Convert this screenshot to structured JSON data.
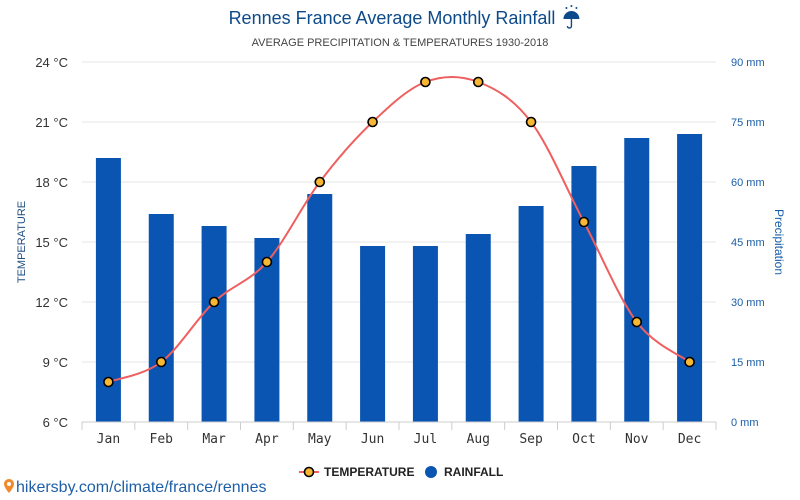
{
  "header": {
    "title": "Rennes France Average Monthly Rainfall",
    "title_icon": "umbrella-rain-icon",
    "subtitle": "AVERAGE PRECIPITATION & TEMPERATURES 1930-2018"
  },
  "source": {
    "text": "hikersby.com/climate/france/rennes",
    "icon": "map-pin-icon"
  },
  "colors": {
    "bar": "#0a55b2",
    "line": "#ef5f5f",
    "marker_fill": "#f7b733",
    "marker_stroke": "#000000",
    "grid": "#e6e6e6"
  },
  "chart_data": {
    "type": "bar",
    "categories": [
      "Jan",
      "Feb",
      "Mar",
      "Apr",
      "May",
      "Jun",
      "Jul",
      "Aug",
      "Sep",
      "Oct",
      "Nov",
      "Dec"
    ],
    "series": [
      {
        "name": "RAINFALL",
        "type": "bar",
        "axis": "right",
        "unit": "mm",
        "values": [
          66,
          52,
          49,
          46,
          57,
          44,
          44,
          47,
          54,
          64,
          71,
          72
        ]
      },
      {
        "name": "TEMPERATURE",
        "type": "line",
        "axis": "left",
        "unit": "°C",
        "values": [
          8,
          9,
          12,
          14,
          18,
          21,
          23,
          23,
          21,
          16,
          11,
          9
        ]
      }
    ],
    "y_left": {
      "label": "TEMPERATURE",
      "min": 6,
      "max": 24,
      "ticks": [
        6,
        9,
        12,
        15,
        18,
        21,
        24
      ],
      "tick_labels": [
        "6 °C",
        "9 °C",
        "12 °C",
        "15 °C",
        "18 °C",
        "21 °C",
        "24 °C"
      ]
    },
    "y_right": {
      "label": "Precipitation",
      "min": 0,
      "max": 90,
      "ticks": [
        0,
        15,
        30,
        45,
        60,
        75,
        90
      ],
      "tick_labels": [
        "0 mm",
        "15 mm",
        "30 mm",
        "45 mm",
        "60 mm",
        "75 mm",
        "90 mm"
      ]
    },
    "grid": true,
    "legend": {
      "position": "bottom-center",
      "items": [
        {
          "label": "TEMPERATURE",
          "marker": "line-circle"
        },
        {
          "label": "RAINFALL",
          "marker": "circle"
        }
      ]
    }
  }
}
